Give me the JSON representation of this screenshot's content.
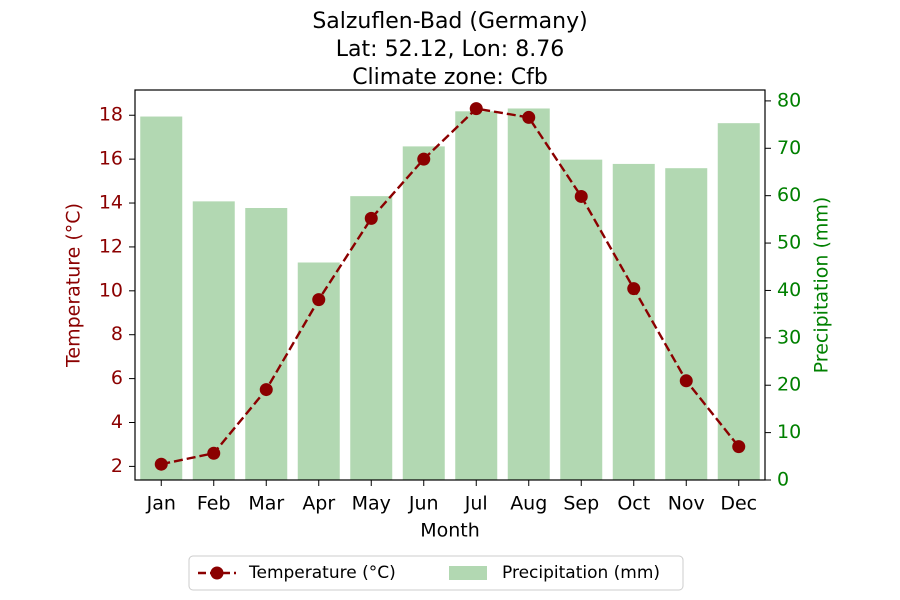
{
  "chart_data": {
    "type": "bar+line",
    "title_lines": [
      "Salzuflen-Bad (Germany)",
      "Lat: 52.12, Lon: 8.76",
      "Climate zone: Cfb"
    ],
    "xlabel": "Month",
    "categories": [
      "Jan",
      "Feb",
      "Mar",
      "Apr",
      "May",
      "Jun",
      "Jul",
      "Aug",
      "Sep",
      "Oct",
      "Nov",
      "Dec"
    ],
    "series": [
      {
        "name": "Temperature (°C)",
        "type": "line",
        "axis": "left",
        "color": "#8b0000",
        "style": "dashed, circle markers",
        "values": [
          2.1,
          2.6,
          5.5,
          9.6,
          13.3,
          16.0,
          18.3,
          17.9,
          14.3,
          10.1,
          5.9,
          2.9
        ]
      },
      {
        "name": "Precipitation (mm)",
        "type": "bar",
        "axis": "right",
        "color": "#b2d8b2",
        "values": [
          76.7,
          58.8,
          57.4,
          45.9,
          59.9,
          70.4,
          77.8,
          78.4,
          67.6,
          66.7,
          65.8,
          75.3
        ]
      }
    ],
    "y_left": {
      "label": "Temperature (°C)",
      "color": "#8b0000",
      "ylim": [
        1.38,
        19.15
      ],
      "ticks": [
        2,
        4,
        6,
        8,
        10,
        12,
        14,
        16,
        18
      ]
    },
    "y_right": {
      "label": "Precipitation (mm)",
      "color": "#008000",
      "ylim": [
        0,
        82.3
      ],
      "ticks": [
        0,
        10,
        20,
        30,
        40,
        50,
        60,
        70,
        80
      ]
    },
    "grid": false,
    "legend": {
      "placement": "bottom-center",
      "entries": [
        "Temperature (°C)",
        "Precipitation (mm)"
      ]
    }
  }
}
